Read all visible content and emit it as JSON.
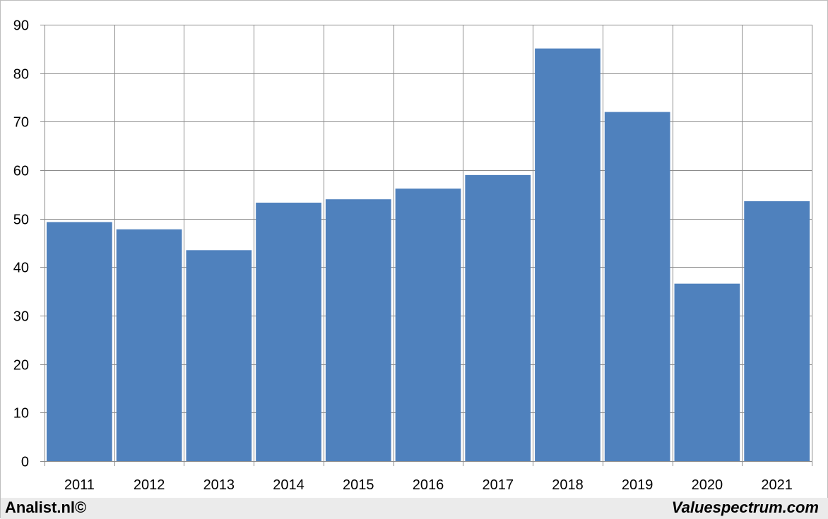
{
  "chart_data": {
    "type": "bar",
    "categories": [
      "2011",
      "2012",
      "2013",
      "2014",
      "2015",
      "2016",
      "2017",
      "2018",
      "2019",
      "2020",
      "2021"
    ],
    "values": [
      49.3,
      47.8,
      43.5,
      53.3,
      54.0,
      56.2,
      59.0,
      85.1,
      72.0,
      36.6,
      53.6
    ],
    "yticks": [
      "0",
      "10",
      "20",
      "30",
      "40",
      "50",
      "60",
      "70",
      "80",
      "90"
    ],
    "ylim": [
      0,
      90
    ],
    "grid": true,
    "bar_color": "#4f81bd",
    "grid_color": "#8c8c8c"
  },
  "footer": {
    "left_brand": "Analist.nl©",
    "right_brand": "Valuespectrum.com"
  }
}
